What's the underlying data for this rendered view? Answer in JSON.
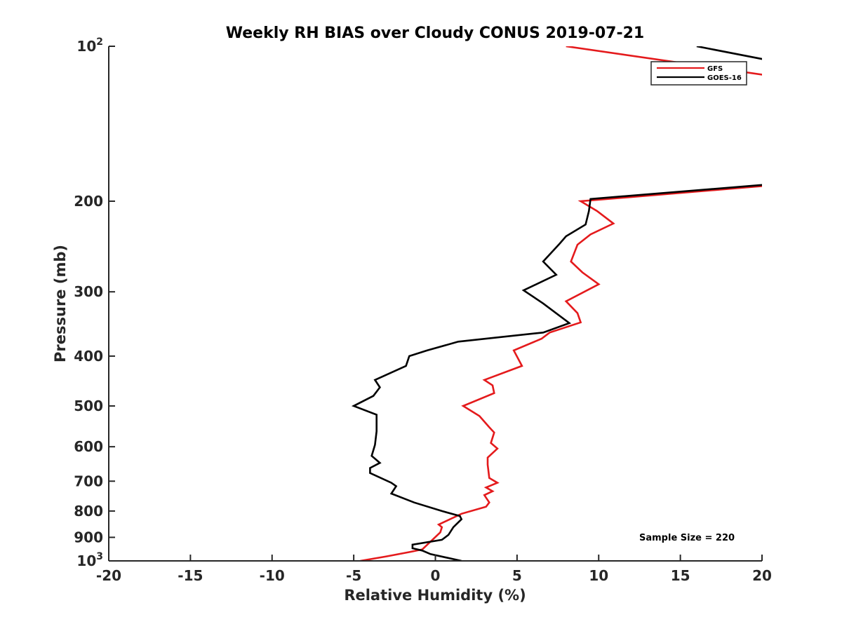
{
  "chart_data": {
    "type": "line",
    "title": "Weekly RH BIAS over Cloudy CONUS 2019-07-21",
    "xlabel": "Relative Humidity (%)",
    "ylabel": "Pressure (mb)",
    "xlim": [
      -20,
      20
    ],
    "ylim": [
      100,
      1000
    ],
    "y_scale": "log",
    "y_reversed": true,
    "x_ticks": [
      -20,
      -15,
      -10,
      -5,
      0,
      5,
      10,
      15,
      20
    ],
    "x_tick_labels": [
      "-20",
      "-15",
      "-10",
      "-5",
      "0",
      "5",
      "10",
      "15",
      "20"
    ],
    "y_ticks": [
      {
        "value": 100,
        "label": "",
        "base": "10",
        "exp": "2"
      },
      {
        "value": 200,
        "label": "200"
      },
      {
        "value": 300,
        "label": "300"
      },
      {
        "value": 400,
        "label": "400"
      },
      {
        "value": 500,
        "label": "500"
      },
      {
        "value": 600,
        "label": "600"
      },
      {
        "value": 700,
        "label": "700"
      },
      {
        "value": 800,
        "label": "800"
      },
      {
        "value": 900,
        "label": "900"
      },
      {
        "value": 1000,
        "label": "",
        "base": "10",
        "exp": "3"
      }
    ],
    "grid": false,
    "legend_position": "top-right",
    "series": [
      {
        "name": "GFS",
        "color": "#e41a1c",
        "points": [
          [
            8.0,
            100
          ],
          [
            35.0,
            133
          ],
          [
            20.0,
            187
          ],
          [
            8.9,
            200
          ],
          [
            9.9,
            209
          ],
          [
            10.9,
            221
          ],
          [
            9.5,
            232
          ],
          [
            8.7,
            243
          ],
          [
            8.3,
            262
          ],
          [
            9.0,
            275
          ],
          [
            10.0,
            290
          ],
          [
            8.0,
            313
          ],
          [
            8.7,
            330
          ],
          [
            8.9,
            344
          ],
          [
            7.0,
            360
          ],
          [
            6.5,
            370
          ],
          [
            4.8,
            390
          ],
          [
            5.3,
            418
          ],
          [
            3.0,
            445
          ],
          [
            3.5,
            456
          ],
          [
            3.6,
            472
          ],
          [
            1.7,
            500
          ],
          [
            2.7,
            523
          ],
          [
            3.3,
            550
          ],
          [
            3.6,
            563
          ],
          [
            3.4,
            590
          ],
          [
            3.8,
            605
          ],
          [
            3.2,
            630
          ],
          [
            3.2,
            650
          ],
          [
            3.3,
            690
          ],
          [
            3.8,
            705
          ],
          [
            3.1,
            720
          ],
          [
            3.5,
            732
          ],
          [
            3.0,
            745
          ],
          [
            3.3,
            770
          ],
          [
            3.1,
            785
          ],
          [
            1.6,
            810
          ],
          [
            0.2,
            850
          ],
          [
            0.4,
            860
          ],
          [
            0.3,
            880
          ],
          [
            -0.5,
            930
          ],
          [
            -0.8,
            950
          ],
          [
            -1.5,
            960
          ],
          [
            -3.0,
            980
          ],
          [
            -4.6,
            1000
          ]
        ]
      },
      {
        "name": "GOES-16",
        "color": "#000000",
        "points": [
          [
            16.0,
            100
          ],
          [
            35.0,
            131
          ],
          [
            20.0,
            186
          ],
          [
            9.5,
            198
          ],
          [
            9.4,
            209
          ],
          [
            9.2,
            222
          ],
          [
            8.0,
            234
          ],
          [
            7.6,
            242
          ],
          [
            6.6,
            262
          ],
          [
            7.4,
            278
          ],
          [
            5.4,
            298
          ],
          [
            6.6,
            316
          ],
          [
            8.2,
            345
          ],
          [
            6.6,
            360
          ],
          [
            1.4,
            375
          ],
          [
            -0.5,
            390
          ],
          [
            -1.6,
            400
          ],
          [
            -1.8,
            418
          ],
          [
            -3.7,
            445
          ],
          [
            -3.4,
            460
          ],
          [
            -3.8,
            478
          ],
          [
            -5.0,
            500
          ],
          [
            -3.6,
            520
          ],
          [
            -3.6,
            560
          ],
          [
            -3.7,
            595
          ],
          [
            -3.9,
            625
          ],
          [
            -3.4,
            645
          ],
          [
            -4.0,
            660
          ],
          [
            -4.0,
            675
          ],
          [
            -2.7,
            705
          ],
          [
            -2.4,
            716
          ],
          [
            -2.7,
            740
          ],
          [
            -1.3,
            770
          ],
          [
            0.4,
            800
          ],
          [
            1.5,
            818
          ],
          [
            1.6,
            830
          ],
          [
            1.1,
            860
          ],
          [
            0.8,
            890
          ],
          [
            0.4,
            910
          ],
          [
            -1.4,
            930
          ],
          [
            -1.4,
            945
          ],
          [
            -0.8,
            955
          ],
          [
            -0.3,
            970
          ],
          [
            1.6,
            1000
          ]
        ]
      }
    ],
    "annotation": "Sample Size = 220"
  }
}
